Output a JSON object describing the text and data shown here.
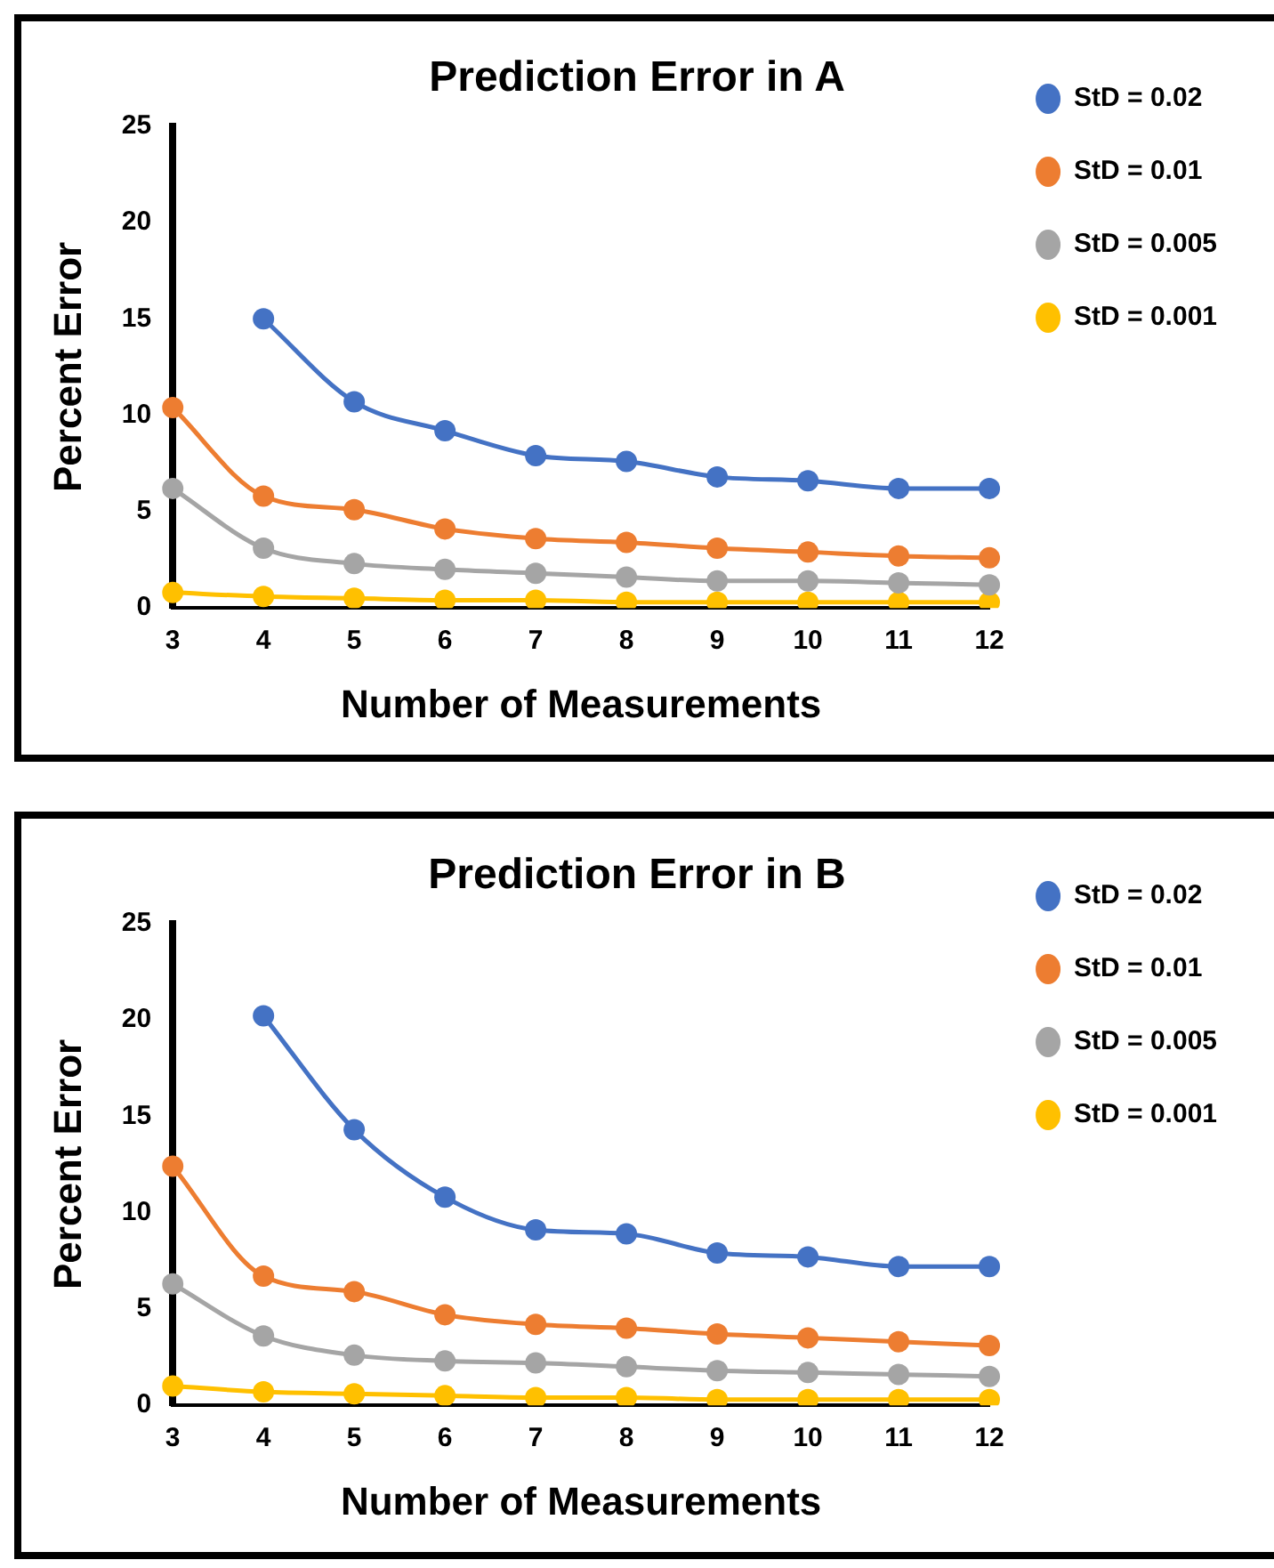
{
  "chart_data": [
    {
      "type": "line",
      "title": "Prediction Error in A",
      "xlabel": "Number of Measurements",
      "ylabel": "Percent Error",
      "categories": [
        "3",
        "4",
        "5",
        "6",
        "7",
        "8",
        "9",
        "10",
        "11",
        "12"
      ],
      "ylim": [
        0,
        25
      ],
      "yticks": [
        0,
        5,
        10,
        15,
        20,
        25
      ],
      "grid": false,
      "legend": "top right",
      "marker": "circle",
      "line_style": "solid",
      "series": [
        {
          "name": "StD = 0.02",
          "color": "#4472c4",
          "values": [
            null,
            15,
            10.7,
            9.2,
            7.9,
            7.6,
            6.8,
            6.6,
            6.2,
            6.2
          ]
        },
        {
          "name": "StD = 0.01",
          "color": "#ed7d31",
          "values": [
            10.4,
            5.8,
            5.1,
            4.1,
            3.6,
            3.4,
            3.1,
            2.9,
            2.7,
            2.6
          ]
        },
        {
          "name": "StD = 0.005",
          "color": "#a5a5a5",
          "values": [
            6.2,
            3.1,
            2.3,
            2.0,
            1.8,
            1.6,
            1.4,
            1.4,
            1.3,
            1.2
          ]
        },
        {
          "name": "StD = 0.001",
          "color": "#ffc000",
          "values": [
            0.8,
            0.6,
            0.5,
            0.4,
            0.4,
            0.3,
            0.3,
            0.3,
            0.3,
            0.3
          ]
        }
      ]
    },
    {
      "type": "line",
      "title": "Prediction Error in B",
      "xlabel": "Number of Measurements",
      "ylabel": "Percent Error",
      "categories": [
        "3",
        "4",
        "5",
        "6",
        "7",
        "8",
        "9",
        "10",
        "11",
        "12"
      ],
      "ylim": [
        0,
        25
      ],
      "yticks": [
        0,
        5,
        10,
        15,
        20,
        25
      ],
      "grid": false,
      "legend": "top right",
      "marker": "circle",
      "line_style": "solid",
      "series": [
        {
          "name": "StD = 0.02",
          "color": "#4472c4",
          "values": [
            null,
            20.2,
            14.3,
            10.8,
            9.1,
            8.9,
            7.9,
            7.7,
            7.2,
            7.2
          ]
        },
        {
          "name": "StD = 0.01",
          "color": "#ed7d31",
          "values": [
            12.4,
            6.7,
            5.9,
            4.7,
            4.2,
            4.0,
            3.7,
            3.5,
            3.3,
            3.1
          ]
        },
        {
          "name": "StD = 0.005",
          "color": "#a5a5a5",
          "values": [
            6.3,
            3.6,
            2.6,
            2.3,
            2.2,
            2.0,
            1.8,
            1.7,
            1.6,
            1.5
          ]
        },
        {
          "name": "StD = 0.001",
          "color": "#ffc000",
          "values": [
            1.0,
            0.7,
            0.6,
            0.5,
            0.4,
            0.4,
            0.3,
            0.3,
            0.3,
            0.3
          ]
        }
      ]
    }
  ]
}
